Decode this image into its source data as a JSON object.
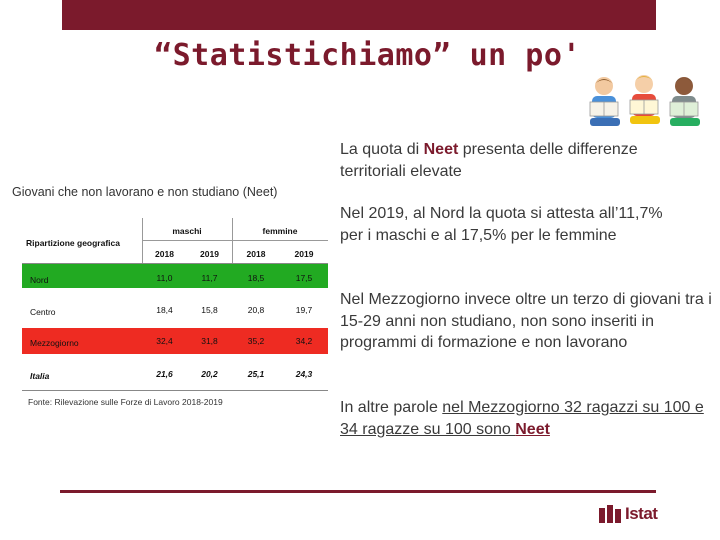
{
  "slide": {
    "title": "“Statistichiamo” un po'",
    "intro": {
      "before": "La quota di ",
      "neet": "Neet",
      "after": "  presenta delle differenze territoriali elevate"
    },
    "para1": "Nel 2019, al Nord la quota si attesta all’11,7% per i maschi e al 17,5% per le femmine",
    "para2": "Nel Mezzogiorno invece oltre un terzo di giovani tra i 15-29 anni non studiano, non sono inseriti in programmi di formazione e non lavorano",
    "para3": {
      "before": "In altre parole ",
      "underlined": "nel Mezzogiorno 32 ragazzi su 100 e 34 ragazze su 100 sono ",
      "neet": "Neet"
    },
    "logo_text": "Istat"
  },
  "table": {
    "title": "Giovani che non lavorano e non studiano (Neet)",
    "corner_header": "Ripartizione geografica",
    "group_headers": [
      "maschi",
      "femmine"
    ],
    "years": [
      "2018",
      "2019",
      "2018",
      "2019"
    ],
    "rows": [
      {
        "label": "Nord",
        "values": [
          "11,0",
          "11,7",
          "18,5",
          "17,5"
        ],
        "color": "#22aa22"
      },
      {
        "label": "Centro",
        "values": [
          "18,4",
          "15,8",
          "20,8",
          "19,7"
        ],
        "color": "#ffffff"
      },
      {
        "label": "Mezzogiorno",
        "values": [
          "32,4",
          "31,8",
          "35,2",
          "34,2"
        ],
        "color": "#ee2b22"
      },
      {
        "label": "Italia",
        "values": [
          "21,6",
          "20,2",
          "25,1",
          "24,3"
        ],
        "color": "#ffffff"
      }
    ],
    "source": "Fonte: Rilevazione sulle Forze di Lavoro 2018-2019"
  },
  "colors": {
    "brand": "#7b1a2c",
    "green": "#22aa22",
    "red": "#ee2b22"
  },
  "icons": [
    "children-reading-illustration",
    "istat-logo-icon"
  ]
}
